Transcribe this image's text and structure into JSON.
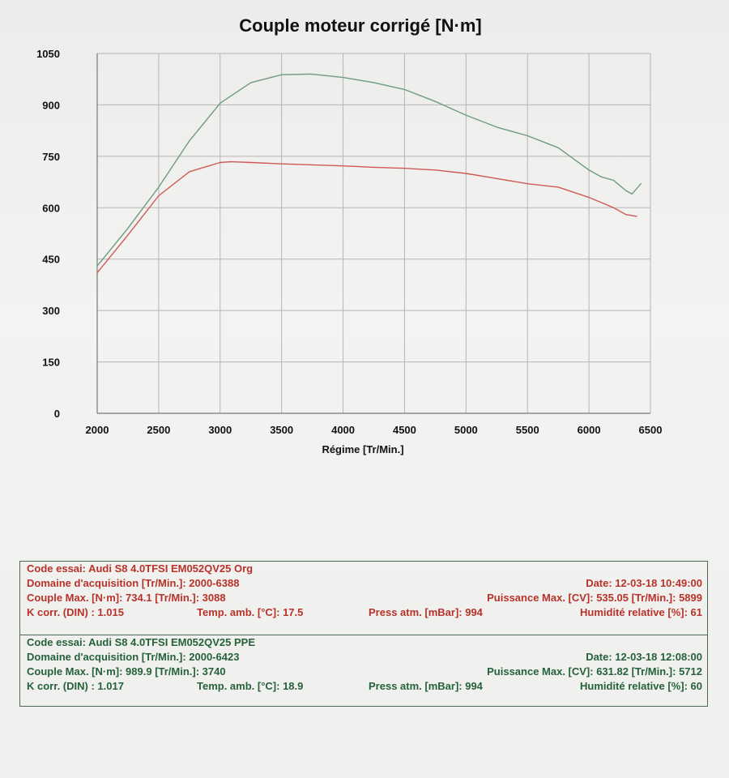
{
  "colors": {
    "grid": "#b5b5b5",
    "org_curve": "#cf5a55",
    "ppe_curve": "#6f9a80",
    "org_text": "#b8322a",
    "ppe_text": "#25623a"
  },
  "chart_data": {
    "type": "line",
    "title": "Couple moteur corrigé [N·m]",
    "xlabel": "Régime [Tr/Min.]",
    "ylabel": "",
    "xlim": [
      2000,
      6500
    ],
    "ylim": [
      0,
      1050
    ],
    "xticks": [
      "2000",
      "2500",
      "3000",
      "3500",
      "4000",
      "4500",
      "5000",
      "5500",
      "6000",
      "6500"
    ],
    "yticks": [
      "0",
      "150",
      "300",
      "450",
      "600",
      "750",
      "900",
      "1050"
    ],
    "grid": true,
    "legend": "none",
    "series": [
      {
        "color": "#6f9a80",
        "x": [
          2000,
          2250,
          2500,
          2750,
          3000,
          3250,
          3500,
          3740,
          4000,
          4250,
          4500,
          4750,
          5000,
          5250,
          5500,
          5750,
          6000,
          6100,
          6200,
          6250,
          6300,
          6350,
          6423
        ],
        "y": [
          430,
          540,
          660,
          795,
          905,
          965,
          988,
          990,
          980,
          965,
          945,
          910,
          870,
          835,
          810,
          775,
          710,
          690,
          680,
          665,
          650,
          640,
          670
        ]
      },
      {
        "color": "#cf5a55",
        "x": [
          2000,
          2250,
          2500,
          2750,
          3000,
          3088,
          3250,
          3500,
          3750,
          4000,
          4250,
          4500,
          4750,
          5000,
          5250,
          5500,
          5750,
          6000,
          6100,
          6200,
          6300,
          6388
        ],
        "y": [
          410,
          520,
          635,
          705,
          732,
          734,
          732,
          728,
          725,
          722,
          718,
          715,
          710,
          700,
          685,
          670,
          660,
          630,
          615,
          600,
          580,
          575
        ]
      }
    ]
  },
  "info": {
    "org": {
      "code": "Code essai: Audi S8 4.0TFSI EM052QV25 Org",
      "domaine": "Domaine d'acquisition [Tr/Min.]: 2000-6388",
      "date": "Date: 12-03-18   10:49:00",
      "couple": "Couple Max. [N·m]: 734.1   [Tr/Min.]: 3088",
      "puissance": "Puissance Max. [CV]: 535.05   [Tr/Min.]: 5899",
      "kcorr": "K corr. (DIN) : 1.015",
      "temp": "Temp. amb. [°C]: 17.5",
      "press": "Press atm. [mBar]: 994",
      "humid": "Humidité relative [%]: 61"
    },
    "ppe": {
      "code": "Code essai: Audi S8 4.0TFSI EM052QV25 PPE",
      "domaine": "Domaine d'acquisition [Tr/Min.]: 2000-6423",
      "date": "Date: 12-03-18   12:08:00",
      "couple": "Couple Max. [N·m]: 989.9   [Tr/Min.]: 3740",
      "puissance": "Puissance Max. [CV]: 631.82   [Tr/Min.]: 5712",
      "kcorr": "K corr. (DIN) : 1.017",
      "temp": "Temp. amb. [°C]: 18.9",
      "press": "Press atm. [mBar]: 994",
      "humid": "Humidité relative [%]: 60"
    }
  }
}
